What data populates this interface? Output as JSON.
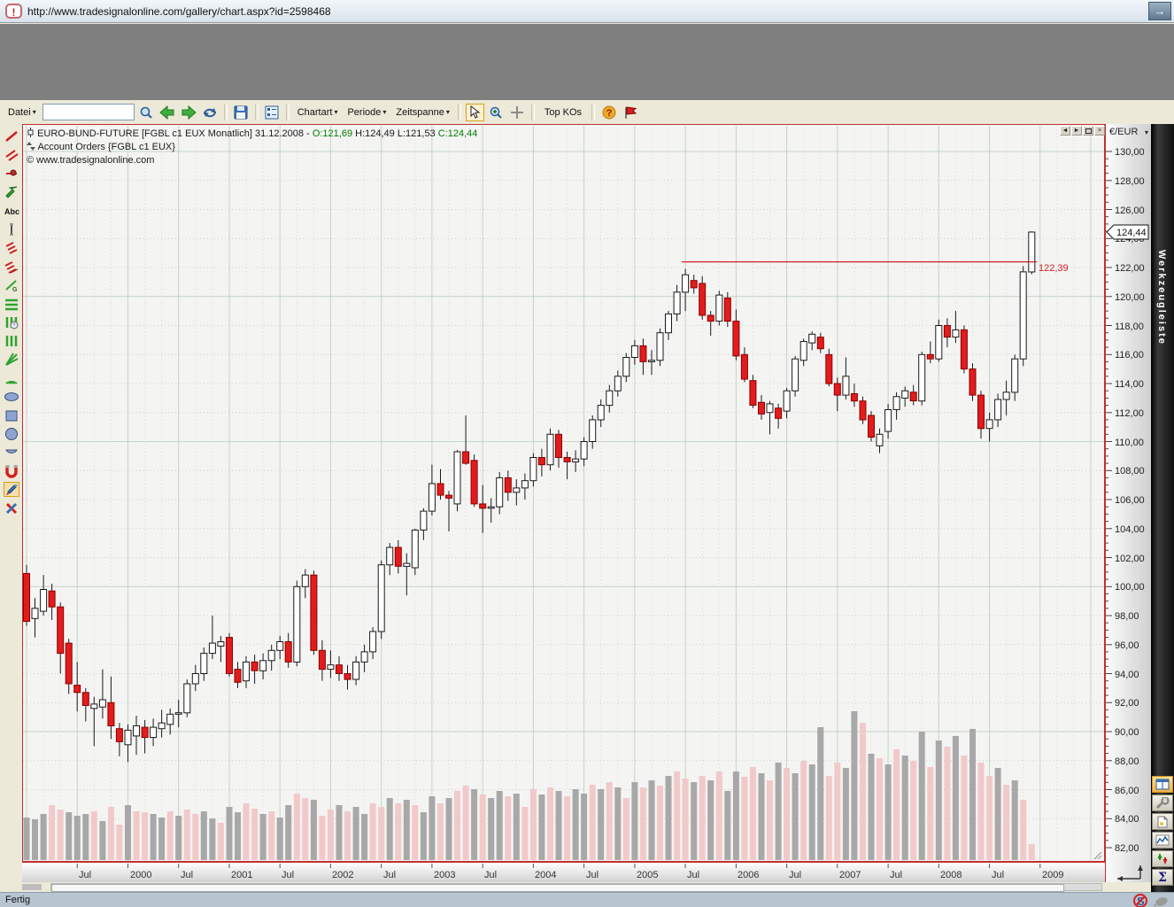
{
  "browser": {
    "url": "http://www.tradesignalonline.com/gallery/chart.aspx?id=2598468",
    "status_text": "Fertig"
  },
  "toolbar": {
    "datei_label": "Datei",
    "search_value": "",
    "dropdowns": [
      "Chartart",
      "Periode",
      "Zeitspanne"
    ],
    "top_kos_label": "Top KOs",
    "icons": [
      "magnifier",
      "back-arrow",
      "forward-arrow",
      "refresh",
      "save",
      "chart-settings",
      "pointer",
      "zoom-in",
      "crosshair",
      "help",
      "flag"
    ]
  },
  "window_controls": {
    "prev": "◄",
    "next": "►",
    "close": "×"
  },
  "chart_header": {
    "title_prefix": "EURO-BUND-FUTURE [FGBL c1 EUX  Monatlich] 31.12.2008 -",
    "open": "O:121,69",
    "high": "H:124,49",
    "low": "L:121,53",
    "close": "C:124,44",
    "orders_line": "Account Orders {FGBL c1 EUX}",
    "copyright": "© www.tradesignalonline.com"
  },
  "y_axis": {
    "header": "€/EUR",
    "marker_value": "124,44",
    "labels": [
      "130,00",
      "128,00",
      "126,00",
      "124,00",
      "122,00",
      "120,00",
      "118,00",
      "116,00",
      "114,00",
      "112,00",
      "110,00",
      "108,00",
      "106,00",
      "104,00",
      "102,00",
      "100,00",
      "98,00",
      "96,00",
      "94,00",
      "92,00",
      "90,00",
      "88,00",
      "86,00",
      "84,00",
      "82,00"
    ]
  },
  "x_axis": {
    "labels": [
      [
        "Jul",
        6
      ],
      [
        "2000",
        12
      ],
      [
        "Jul",
        18
      ],
      [
        "2001",
        24
      ],
      [
        "Jul",
        30
      ],
      [
        "2002",
        36
      ],
      [
        "Jul",
        42
      ],
      [
        "2003",
        48
      ],
      [
        "Jul",
        54
      ],
      [
        "2004",
        60
      ],
      [
        "Jul",
        66
      ],
      [
        "2005",
        72
      ],
      [
        "Jul",
        78
      ],
      [
        "2006",
        84
      ],
      [
        "Jul",
        90
      ],
      [
        "2007",
        96
      ],
      [
        "Jul",
        102
      ],
      [
        "2008",
        108
      ],
      [
        "Jul",
        114
      ],
      [
        "2009",
        120
      ]
    ]
  },
  "annotation": {
    "price": 122.39,
    "label": "122,39",
    "start_month_index": 78
  },
  "right_sidebar": {
    "title": "Werkzeugleiste",
    "icons": [
      "layout-grid",
      "wrench",
      "new-document",
      "chart-line",
      "sort-arrows",
      "sigma"
    ]
  },
  "left_tools": [
    "trendline",
    "parallel-lines",
    "ray",
    "arrow",
    "text",
    "vertical-line",
    "fib-retracement",
    "fib-expansion",
    "gann-line",
    "horizontal-lines",
    "time-cycles",
    "vertical-lines",
    "fan",
    "arcs",
    "ellipse",
    "rectangle",
    "circle",
    "arc",
    "magnet",
    "edit-selected",
    "delete"
  ],
  "status_icons": [
    "s-blocked",
    "mouse"
  ],
  "colors": {
    "candle_up": "#ffffff",
    "candle_down": "#e21c1c",
    "candle_down_stroke": "#8b0000",
    "wick": "#1a1a1a",
    "annotation_red": "#cc2222",
    "grid_major": "#c3d5c3",
    "grid_minor": "#cfcfcf",
    "vol_gray": "#a8a8a8",
    "vol_pink": "#f2c9c9",
    "open_close_green": "#008000"
  },
  "chart_data": {
    "type": "candlestick",
    "title": "EURO-BUND-FUTURE [FGBL c1 EUX Monatlich]",
    "interval": "monthly",
    "start": "1999-01",
    "end": "2008-12",
    "ylabel": "€/EUR",
    "ylim": [
      82,
      131
    ],
    "grid": true,
    "last_ohlc": {
      "open": 121.69,
      "high": 124.49,
      "low": 121.53,
      "close": 124.44
    },
    "resistance_line": 122.39,
    "candles": [
      [
        100.9,
        101.5,
        97.3,
        97.6
      ],
      [
        97.8,
        99.2,
        96.5,
        98.5
      ],
      [
        98.3,
        100.8,
        98.0,
        99.8
      ],
      [
        99.7,
        100.2,
        97.7,
        98.6
      ],
      [
        98.6,
        98.9,
        94.0,
        95.4
      ],
      [
        96.1,
        96.4,
        92.6,
        93.3
      ],
      [
        93.2,
        94.8,
        91.4,
        92.7
      ],
      [
        92.7,
        93.0,
        90.7,
        91.8
      ],
      [
        91.6,
        92.4,
        89.0,
        91.9
      ],
      [
        91.7,
        94.3,
        90.9,
        92.2
      ],
      [
        92.0,
        93.8,
        89.5,
        90.4
      ],
      [
        90.2,
        90.6,
        88.3,
        89.3
      ],
      [
        89.1,
        90.5,
        87.9,
        90.1
      ],
      [
        89.7,
        91.1,
        88.4,
        90.4
      ],
      [
        90.3,
        90.8,
        88.5,
        89.6
      ],
      [
        89.6,
        90.9,
        89.0,
        90.3
      ],
      [
        90.2,
        91.5,
        89.6,
        90.6
      ],
      [
        90.5,
        91.6,
        89.8,
        91.2
      ],
      [
        91.2,
        92.2,
        90.3,
        91.3
      ],
      [
        91.3,
        93.6,
        91.0,
        93.3
      ],
      [
        93.3,
        94.6,
        92.8,
        94.0
      ],
      [
        94.0,
        95.8,
        93.5,
        95.4
      ],
      [
        95.4,
        98.0,
        95.0,
        96.1
      ],
      [
        95.9,
        96.6,
        94.8,
        96.2
      ],
      [
        96.5,
        96.8,
        93.8,
        94.0
      ],
      [
        94.3,
        94.8,
        93.0,
        93.4
      ],
      [
        93.5,
        95.2,
        93.0,
        94.8
      ],
      [
        94.8,
        95.3,
        93.3,
        94.2
      ],
      [
        94.2,
        95.4,
        93.6,
        94.9
      ],
      [
        94.9,
        96.0,
        94.2,
        95.6
      ],
      [
        95.6,
        96.6,
        95.0,
        96.2
      ],
      [
        96.2,
        96.8,
        94.4,
        94.8
      ],
      [
        94.8,
        100.4,
        94.5,
        100.0
      ],
      [
        100.0,
        101.2,
        99.2,
        100.8
      ],
      [
        100.8,
        101.1,
        95.3,
        95.6
      ],
      [
        95.6,
        96.3,
        93.5,
        94.3
      ],
      [
        94.3,
        95.6,
        93.7,
        94.6
      ],
      [
        94.6,
        95.2,
        93.5,
        94.0
      ],
      [
        94.0,
        94.6,
        92.9,
        93.6
      ],
      [
        93.6,
        95.2,
        93.2,
        94.8
      ],
      [
        94.8,
        96.0,
        94.1,
        95.5
      ],
      [
        95.5,
        97.2,
        95.0,
        96.9
      ],
      [
        96.9,
        101.8,
        96.4,
        101.5
      ],
      [
        101.5,
        103.0,
        100.8,
        102.7
      ],
      [
        102.7,
        103.2,
        100.9,
        101.4
      ],
      [
        101.4,
        102.3,
        99.4,
        101.6
      ],
      [
        101.3,
        104.0,
        100.8,
        103.9
      ],
      [
        103.9,
        105.4,
        103.2,
        105.2
      ],
      [
        105.2,
        108.4,
        104.9,
        107.1
      ],
      [
        107.1,
        108.1,
        106.0,
        106.3
      ],
      [
        106.3,
        106.6,
        103.8,
        106.1
      ],
      [
        105.7,
        109.4,
        105.2,
        109.3
      ],
      [
        109.3,
        111.8,
        108.4,
        108.5
      ],
      [
        108.7,
        109.1,
        105.5,
        105.7
      ],
      [
        105.7,
        107.0,
        103.7,
        105.4
      ],
      [
        105.4,
        106.1,
        104.4,
        105.5
      ],
      [
        105.5,
        107.9,
        105.0,
        107.5
      ],
      [
        107.5,
        108.0,
        105.9,
        106.5
      ],
      [
        106.5,
        107.4,
        105.6,
        106.8
      ],
      [
        106.8,
        107.8,
        106.0,
        107.3
      ],
      [
        107.3,
        109.2,
        106.9,
        108.9
      ],
      [
        108.9,
        109.5,
        107.6,
        108.4
      ],
      [
        108.4,
        110.9,
        108.0,
        110.5
      ],
      [
        110.5,
        110.8,
        108.2,
        108.9
      ],
      [
        108.9,
        109.3,
        107.4,
        108.6
      ],
      [
        108.6,
        109.4,
        107.9,
        108.8
      ],
      [
        108.8,
        110.3,
        108.3,
        110.0
      ],
      [
        110.0,
        111.8,
        109.5,
        111.5
      ],
      [
        111.5,
        112.9,
        111.0,
        112.5
      ],
      [
        112.5,
        113.9,
        112.0,
        113.5
      ],
      [
        113.5,
        114.9,
        113.1,
        114.5
      ],
      [
        114.5,
        116.1,
        114.1,
        115.8
      ],
      [
        115.8,
        117.0,
        115.3,
        116.6
      ],
      [
        116.6,
        117.1,
        114.6,
        115.5
      ],
      [
        115.5,
        116.3,
        114.6,
        115.6
      ],
      [
        115.6,
        117.8,
        115.2,
        117.5
      ],
      [
        117.5,
        119.0,
        117.0,
        118.8
      ],
      [
        118.8,
        120.8,
        118.3,
        120.3
      ],
      [
        120.3,
        121.9,
        119.0,
        121.5
      ],
      [
        121.1,
        121.5,
        120.2,
        120.6
      ],
      [
        120.9,
        121.4,
        118.4,
        118.7
      ],
      [
        118.7,
        119.0,
        117.3,
        118.3
      ],
      [
        118.3,
        120.4,
        118.0,
        120.1
      ],
      [
        119.9,
        120.3,
        117.9,
        118.3
      ],
      [
        118.3,
        119.1,
        115.6,
        115.9
      ],
      [
        116.0,
        116.5,
        114.1,
        114.3
      ],
      [
        114.2,
        114.6,
        112.3,
        112.5
      ],
      [
        112.7,
        113.2,
        111.5,
        111.9
      ],
      [
        112.0,
        112.8,
        110.5,
        112.6
      ],
      [
        112.3,
        112.6,
        110.9,
        111.6
      ],
      [
        112.1,
        113.7,
        111.6,
        113.5
      ],
      [
        113.5,
        115.9,
        113.1,
        115.7
      ],
      [
        115.6,
        117.1,
        115.2,
        116.9
      ],
      [
        116.8,
        117.6,
        116.3,
        117.4
      ],
      [
        117.2,
        117.5,
        116.1,
        116.4
      ],
      [
        116.0,
        116.4,
        113.8,
        114.0
      ],
      [
        114.0,
        114.4,
        112.1,
        113.2
      ],
      [
        113.2,
        115.8,
        112.9,
        114.5
      ],
      [
        113.3,
        114.0,
        112.4,
        112.8
      ],
      [
        112.8,
        113.1,
        111.2,
        111.5
      ],
      [
        111.8,
        112.1,
        110.0,
        110.3
      ],
      [
        109.7,
        110.9,
        109.2,
        110.5
      ],
      [
        110.7,
        112.6,
        110.2,
        112.2
      ],
      [
        112.2,
        113.4,
        111.5,
        113.1
      ],
      [
        113.0,
        113.8,
        112.4,
        113.5
      ],
      [
        113.4,
        113.9,
        112.5,
        112.8
      ],
      [
        112.8,
        116.2,
        112.5,
        116.0
      ],
      [
        116.0,
        116.9,
        115.4,
        115.7
      ],
      [
        115.7,
        118.4,
        115.5,
        118.0
      ],
      [
        118.0,
        118.5,
        116.5,
        117.2
      ],
      [
        117.2,
        119.0,
        116.8,
        117.7
      ],
      [
        117.7,
        118.0,
        114.7,
        115.0
      ],
      [
        115.0,
        115.4,
        112.8,
        113.2
      ],
      [
        113.2,
        113.5,
        110.2,
        110.9
      ],
      [
        110.9,
        112.0,
        110.0,
        111.5
      ],
      [
        111.5,
        113.3,
        111.0,
        112.9
      ],
      [
        112.9,
        114.2,
        111.8,
        113.4
      ],
      [
        113.4,
        116.0,
        112.8,
        115.7
      ],
      [
        115.7,
        122.1,
        115.2,
        121.7
      ],
      [
        121.69,
        124.49,
        121.53,
        124.44
      ]
    ],
    "volume": [
      [
        48,
        "g"
      ],
      [
        46,
        "g"
      ],
      [
        52,
        "g"
      ],
      [
        62,
        "p"
      ],
      [
        57,
        "p"
      ],
      [
        54,
        "g"
      ],
      [
        50,
        "g"
      ],
      [
        52,
        "g"
      ],
      [
        55,
        "p"
      ],
      [
        44,
        "g"
      ],
      [
        60,
        "p"
      ],
      [
        40,
        "p"
      ],
      [
        62,
        "g"
      ],
      [
        55,
        "p"
      ],
      [
        54,
        "p"
      ],
      [
        52,
        "g"
      ],
      [
        48,
        "g"
      ],
      [
        55,
        "p"
      ],
      [
        50,
        "g"
      ],
      [
        57,
        "p"
      ],
      [
        52,
        "p"
      ],
      [
        55,
        "g"
      ],
      [
        47,
        "g"
      ],
      [
        42,
        "p"
      ],
      [
        60,
        "g"
      ],
      [
        54,
        "g"
      ],
      [
        64,
        "p"
      ],
      [
        58,
        "p"
      ],
      [
        52,
        "g"
      ],
      [
        55,
        "p"
      ],
      [
        48,
        "g"
      ],
      [
        62,
        "g"
      ],
      [
        75,
        "p"
      ],
      [
        70,
        "p"
      ],
      [
        68,
        "g"
      ],
      [
        50,
        "p"
      ],
      [
        57,
        "p"
      ],
      [
        62,
        "g"
      ],
      [
        55,
        "p"
      ],
      [
        60,
        "g"
      ],
      [
        52,
        "g"
      ],
      [
        64,
        "p"
      ],
      [
        60,
        "p"
      ],
      [
        70,
        "g"
      ],
      [
        64,
        "p"
      ],
      [
        68,
        "g"
      ],
      [
        62,
        "p"
      ],
      [
        54,
        "g"
      ],
      [
        72,
        "g"
      ],
      [
        64,
        "p"
      ],
      [
        70,
        "g"
      ],
      [
        78,
        "p"
      ],
      [
        84,
        "p"
      ],
      [
        80,
        "g"
      ],
      [
        74,
        "p"
      ],
      [
        70,
        "g"
      ],
      [
        78,
        "g"
      ],
      [
        72,
        "p"
      ],
      [
        75,
        "g"
      ],
      [
        60,
        "p"
      ],
      [
        80,
        "p"
      ],
      [
        74,
        "g"
      ],
      [
        82,
        "p"
      ],
      [
        78,
        "g"
      ],
      [
        72,
        "p"
      ],
      [
        80,
        "g"
      ],
      [
        75,
        "g"
      ],
      [
        85,
        "p"
      ],
      [
        80,
        "g"
      ],
      [
        88,
        "p"
      ],
      [
        82,
        "g"
      ],
      [
        70,
        "p"
      ],
      [
        88,
        "g"
      ],
      [
        82,
        "p"
      ],
      [
        90,
        "g"
      ],
      [
        84,
        "p"
      ],
      [
        95,
        "g"
      ],
      [
        100,
        "p"
      ],
      [
        92,
        "p"
      ],
      [
        88,
        "g"
      ],
      [
        95,
        "p"
      ],
      [
        90,
        "g"
      ],
      [
        100,
        "p"
      ],
      [
        78,
        "g"
      ],
      [
        100,
        "g"
      ],
      [
        94,
        "p"
      ],
      [
        105,
        "p"
      ],
      [
        98,
        "g"
      ],
      [
        90,
        "p"
      ],
      [
        110,
        "g"
      ],
      [
        104,
        "p"
      ],
      [
        98,
        "g"
      ],
      [
        112,
        "p"
      ],
      [
        108,
        "g"
      ],
      [
        150,
        "g"
      ],
      [
        95,
        "p"
      ],
      [
        110,
        "p"
      ],
      [
        104,
        "g"
      ],
      [
        168,
        "g"
      ],
      [
        155,
        "p"
      ],
      [
        120,
        "g"
      ],
      [
        115,
        "p"
      ],
      [
        108,
        "g"
      ],
      [
        125,
        "p"
      ],
      [
        118,
        "g"
      ],
      [
        112,
        "p"
      ],
      [
        145,
        "g"
      ],
      [
        105,
        "p"
      ],
      [
        135,
        "g"
      ],
      [
        128,
        "p"
      ],
      [
        140,
        "g"
      ],
      [
        118,
        "p"
      ],
      [
        148,
        "g"
      ],
      [
        110,
        "p"
      ],
      [
        95,
        "p"
      ],
      [
        104,
        "g"
      ],
      [
        85,
        "p"
      ],
      [
        90,
        "g"
      ],
      [
        68,
        "p"
      ],
      [
        18,
        "p"
      ]
    ]
  }
}
